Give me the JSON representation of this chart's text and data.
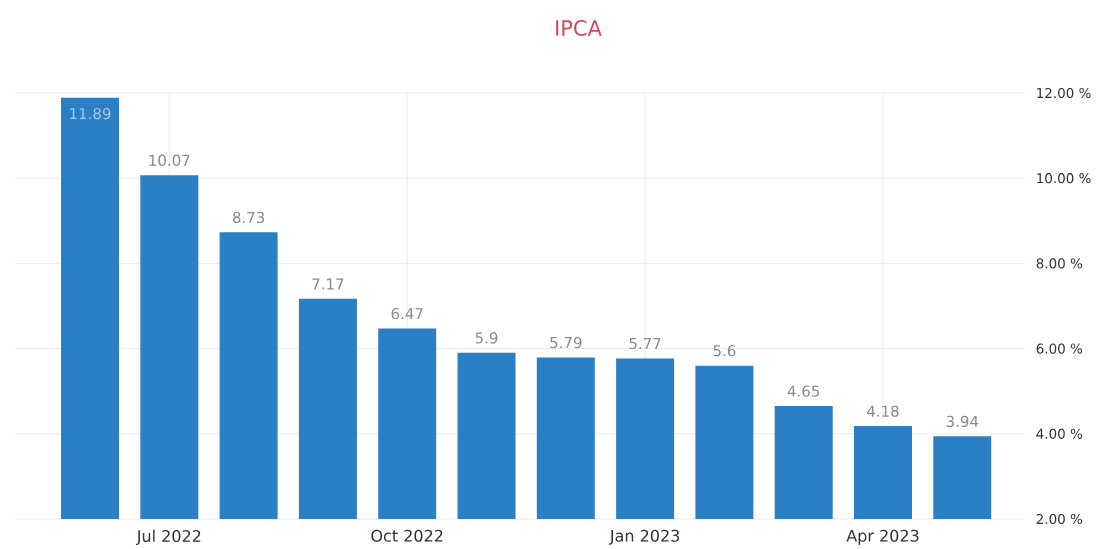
{
  "chart_data": {
    "type": "bar",
    "title": "IPCA",
    "categories": [
      null,
      "Jul 2022",
      null,
      null,
      "Oct 2022",
      null,
      null,
      "Jan 2023",
      null,
      null,
      "Apr 2023",
      null
    ],
    "values": [
      11.89,
      10.07,
      8.73,
      7.17,
      6.47,
      5.9,
      5.79,
      5.77,
      5.6,
      4.65,
      4.18,
      3.94
    ],
    "color": "#2b7fc4",
    "ylim": [
      2,
      12
    ],
    "yticks": [
      {
        "value": 2,
        "label": "2.00 %"
      },
      {
        "value": 4,
        "label": "4.00 %"
      },
      {
        "value": 6,
        "label": "6.00 %"
      },
      {
        "value": 8,
        "label": "8.00 %"
      },
      {
        "value": 10,
        "label": "10.00 %"
      },
      {
        "value": 12,
        "label": "12.00 %"
      }
    ],
    "grid": true,
    "data_labels": true
  }
}
